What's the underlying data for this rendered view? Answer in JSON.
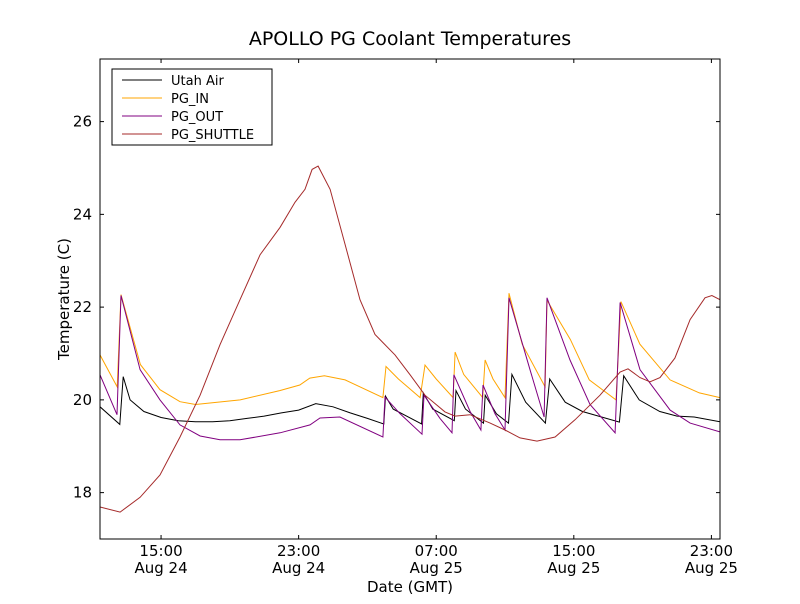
{
  "chart_data": {
    "type": "line",
    "title": "APOLLO PG Coolant Temperatures",
    "xlabel": "Date (GMT)",
    "ylabel": "Temperature (C)",
    "x_units": "hours since Aug 24 00:00 GMT",
    "xlim": [
      11.45,
      47.5
    ],
    "ylim": [
      17.0,
      27.35
    ],
    "grid": false,
    "legend_position": "top-left",
    "x_ticks": [
      {
        "value": 15,
        "time": "15:00",
        "date": "Aug 24"
      },
      {
        "value": 23,
        "time": "23:00",
        "date": "Aug 24"
      },
      {
        "value": 31,
        "time": "07:00",
        "date": "Aug 25"
      },
      {
        "value": 39,
        "time": "15:00",
        "date": "Aug 25"
      },
      {
        "value": 47,
        "time": "23:00",
        "date": "Aug 25"
      }
    ],
    "y_ticks": [
      {
        "value": 18,
        "label": "18"
      },
      {
        "value": 20,
        "label": "20"
      },
      {
        "value": 22,
        "label": "22"
      },
      {
        "value": 24,
        "label": "24"
      },
      {
        "value": 26,
        "label": "26"
      }
    ],
    "series": [
      {
        "name": "Utah Air",
        "color": "#000000",
        "points": [
          [
            11.45,
            19.85
          ],
          [
            12.6,
            19.47
          ],
          [
            12.8,
            20.5
          ],
          [
            13.2,
            20.0
          ],
          [
            14,
            19.75
          ],
          [
            15,
            19.62
          ],
          [
            16,
            19.55
          ],
          [
            17,
            19.53
          ],
          [
            18,
            19.53
          ],
          [
            19,
            19.55
          ],
          [
            20,
            19.6
          ],
          [
            21,
            19.65
          ],
          [
            22,
            19.72
          ],
          [
            23,
            19.78
          ],
          [
            24,
            19.92
          ],
          [
            25,
            19.85
          ],
          [
            26,
            19.72
          ],
          [
            27,
            19.6
          ],
          [
            27.95,
            19.48
          ],
          [
            28.05,
            20.08
          ],
          [
            28.5,
            19.8
          ],
          [
            30.15,
            19.48
          ],
          [
            30.25,
            20.15
          ],
          [
            30.8,
            19.8
          ],
          [
            32.05,
            19.55
          ],
          [
            32.15,
            20.2
          ],
          [
            32.7,
            19.8
          ],
          [
            33.75,
            19.5
          ],
          [
            33.85,
            20.1
          ],
          [
            34.5,
            19.7
          ],
          [
            35.2,
            19.5
          ],
          [
            35.4,
            20.55
          ],
          [
            36.2,
            19.95
          ],
          [
            37.35,
            19.5
          ],
          [
            37.6,
            20.45
          ],
          [
            38.5,
            19.95
          ],
          [
            39.5,
            19.75
          ],
          [
            41.65,
            19.52
          ],
          [
            41.9,
            20.52
          ],
          [
            42.8,
            20.0
          ],
          [
            44,
            19.75
          ],
          [
            45,
            19.65
          ],
          [
            46,
            19.63
          ],
          [
            47.5,
            19.53
          ]
        ]
      },
      {
        "name": "PG_IN",
        "color": "#FFA500",
        "points": [
          [
            11.45,
            20.97
          ],
          [
            12.45,
            20.28
          ],
          [
            12.67,
            22.27
          ],
          [
            13.8,
            20.76
          ],
          [
            14.94,
            20.22
          ],
          [
            16.1,
            19.96
          ],
          [
            17,
            19.9
          ],
          [
            19.6,
            20.0
          ],
          [
            21.9,
            20.2
          ],
          [
            23.07,
            20.32
          ],
          [
            23.65,
            20.47
          ],
          [
            24.5,
            20.52
          ],
          [
            25.7,
            20.43
          ],
          [
            27.9,
            20.05
          ],
          [
            28.08,
            20.72
          ],
          [
            28.8,
            20.45
          ],
          [
            30.06,
            20.05
          ],
          [
            30.35,
            20.75
          ],
          [
            31,
            20.45
          ],
          [
            31.98,
            20.05
          ],
          [
            32.1,
            21.03
          ],
          [
            32.6,
            20.55
          ],
          [
            33.7,
            20.05
          ],
          [
            33.84,
            20.86
          ],
          [
            34.3,
            20.45
          ],
          [
            35.0,
            20.05
          ],
          [
            35.23,
            22.3
          ],
          [
            36,
            21.2
          ],
          [
            37.33,
            20.28
          ],
          [
            37.44,
            22.15
          ],
          [
            38.8,
            21.3
          ],
          [
            39.9,
            20.43
          ],
          [
            41.45,
            20.0
          ],
          [
            41.74,
            22.12
          ],
          [
            42.84,
            21.2
          ],
          [
            44.6,
            20.43
          ],
          [
            46.3,
            20.15
          ],
          [
            47.5,
            20.05
          ]
        ]
      },
      {
        "name": "PG_OUT",
        "color": "#800080",
        "points": [
          [
            11.45,
            20.54
          ],
          [
            12.44,
            19.68
          ],
          [
            12.67,
            22.25
          ],
          [
            13.78,
            20.65
          ],
          [
            14.94,
            20.0
          ],
          [
            16.1,
            19.46
          ],
          [
            17.27,
            19.22
          ],
          [
            18.43,
            19.14
          ],
          [
            19.59,
            19.14
          ],
          [
            21.92,
            19.29
          ],
          [
            23.66,
            19.46
          ],
          [
            24.24,
            19.61
          ],
          [
            25.4,
            19.63
          ],
          [
            27.9,
            19.2
          ],
          [
            28.02,
            20.06
          ],
          [
            28.9,
            19.7
          ],
          [
            30.17,
            19.26
          ],
          [
            30.29,
            20.1
          ],
          [
            31.22,
            19.6
          ],
          [
            31.92,
            19.29
          ],
          [
            32.03,
            20.54
          ],
          [
            32.97,
            19.75
          ],
          [
            33.6,
            19.35
          ],
          [
            33.72,
            20.32
          ],
          [
            34.42,
            19.7
          ],
          [
            35.0,
            19.35
          ],
          [
            35.23,
            22.2
          ],
          [
            36.45,
            20.65
          ],
          [
            37.27,
            19.63
          ],
          [
            37.44,
            22.2
          ],
          [
            38.78,
            20.86
          ],
          [
            39.94,
            19.9
          ],
          [
            41.4,
            19.29
          ],
          [
            41.69,
            22.1
          ],
          [
            42.85,
            20.65
          ],
          [
            44.6,
            19.78
          ],
          [
            45.76,
            19.5
          ],
          [
            47.5,
            19.31
          ]
        ]
      },
      {
        "name": "PG_SHUTTLE",
        "color": "#A52A2A",
        "points": [
          [
            11.45,
            17.69
          ],
          [
            12.62,
            17.58
          ],
          [
            13.78,
            17.9
          ],
          [
            14.94,
            18.38
          ],
          [
            16.1,
            19.2
          ],
          [
            17.27,
            20.1
          ],
          [
            18.43,
            21.19
          ],
          [
            19.59,
            22.16
          ],
          [
            20.76,
            23.13
          ],
          [
            21.92,
            23.72
          ],
          [
            22.79,
            24.26
          ],
          [
            23.37,
            24.54
          ],
          [
            23.78,
            24.97
          ],
          [
            24.13,
            25.04
          ],
          [
            24.83,
            24.54
          ],
          [
            25.7,
            23.35
          ],
          [
            26.57,
            22.16
          ],
          [
            27.44,
            21.41
          ],
          [
            28.6,
            20.97
          ],
          [
            29.48,
            20.54
          ],
          [
            30.35,
            20.1
          ],
          [
            31.51,
            19.74
          ],
          [
            32.09,
            19.65
          ],
          [
            32.97,
            19.68
          ],
          [
            34.13,
            19.5
          ],
          [
            35.0,
            19.35
          ],
          [
            35.87,
            19.18
          ],
          [
            36.86,
            19.11
          ],
          [
            37.91,
            19.2
          ],
          [
            39.07,
            19.57
          ],
          [
            40.52,
            20.1
          ],
          [
            41.69,
            20.6
          ],
          [
            42.15,
            20.67
          ],
          [
            42.85,
            20.48
          ],
          [
            43.43,
            20.39
          ],
          [
            44.01,
            20.48
          ],
          [
            44.88,
            20.9
          ],
          [
            45.76,
            21.73
          ],
          [
            46.63,
            22.2
          ],
          [
            47.03,
            22.25
          ],
          [
            47.5,
            22.16
          ]
        ]
      }
    ]
  }
}
